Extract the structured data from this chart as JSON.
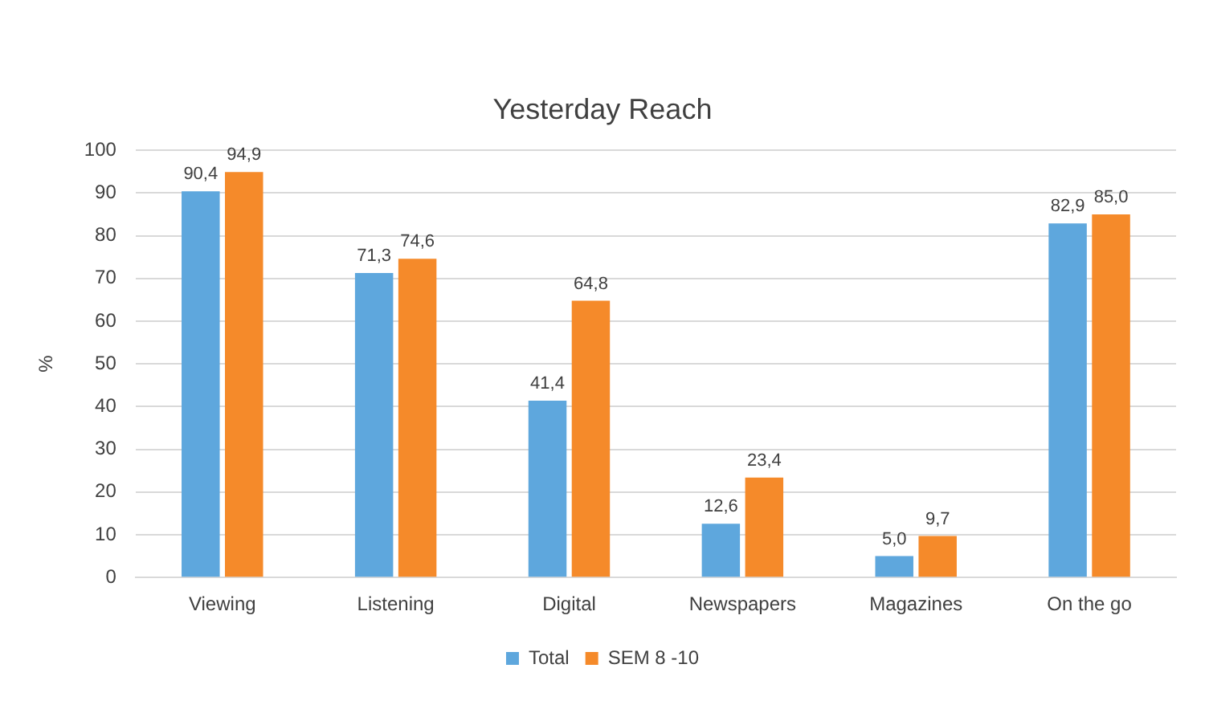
{
  "chart_data": {
    "type": "bar",
    "title": "Yesterday Reach",
    "ylabel": "%",
    "categories": [
      "Viewing",
      "Listening",
      "Digital",
      "Newspapers",
      "Magazines",
      "On the go"
    ],
    "series": [
      {
        "name": "Total",
        "color": "#5ea7dd",
        "values": [
          90.4,
          71.3,
          41.4,
          12.6,
          5.0,
          82.9
        ],
        "value_labels": [
          "90,4",
          "71,3",
          "41,4",
          "12,6",
          "5,0",
          "82,9"
        ]
      },
      {
        "name": "SEM 8 -10",
        "color": "#f58a2a",
        "values": [
          94.9,
          74.6,
          64.8,
          23.4,
          9.7,
          85.0
        ],
        "value_labels": [
          "94,9",
          "74,6",
          "64,8",
          "23,4",
          "9,7",
          "85,0"
        ]
      }
    ],
    "ylim": [
      0,
      100
    ],
    "yticks": [
      0,
      10,
      20,
      30,
      40,
      50,
      60,
      70,
      80,
      90,
      100
    ],
    "grid": "y",
    "legend": "bottom"
  }
}
